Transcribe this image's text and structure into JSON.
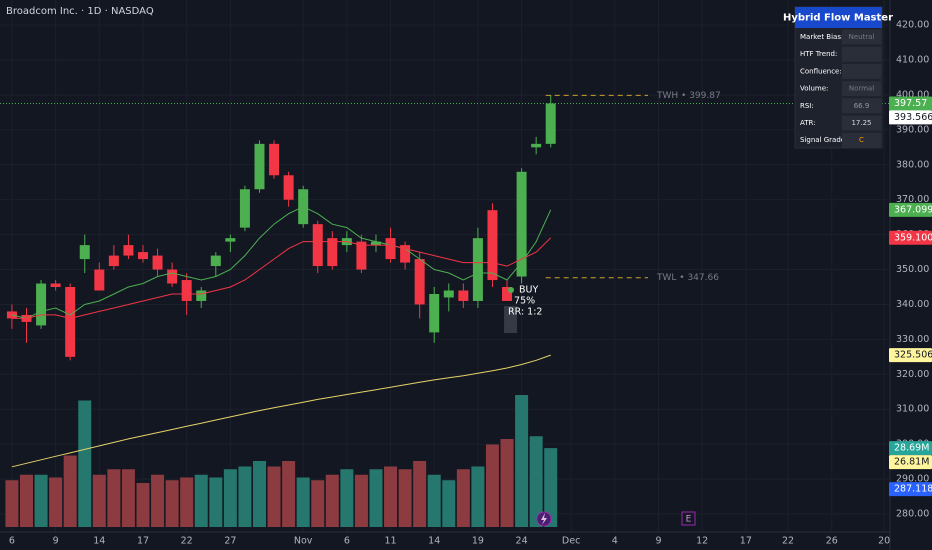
{
  "chart_data": {
    "type": "candlestick",
    "title": "Broadcom Inc. · 1D · NASDAQ",
    "x": [
      0,
      1,
      2,
      3,
      4,
      5,
      6,
      7,
      8,
      9,
      10,
      11,
      12,
      13,
      14,
      15,
      16,
      17,
      18,
      19,
      20,
      21,
      22,
      23,
      24,
      25,
      26,
      27,
      28,
      29,
      30,
      31,
      32,
      33,
      34,
      35,
      36,
      37
    ],
    "open": [
      338,
      337,
      334,
      346,
      345,
      353,
      350,
      354,
      357,
      355,
      354,
      350,
      347,
      341,
      351,
      358,
      362,
      373,
      386,
      377,
      363,
      363,
      359,
      357,
      358,
      357,
      359,
      357,
      353,
      332,
      342,
      344,
      341,
      367,
      345,
      348,
      385,
      386
    ],
    "high": [
      340,
      339,
      347,
      347,
      346,
      360,
      352,
      357,
      360,
      357,
      356,
      352,
      349,
      345,
      355,
      360,
      374,
      387,
      387,
      378,
      374,
      364,
      361,
      361,
      360,
      360,
      362,
      358,
      355,
      345,
      346,
      346,
      362,
      369,
      347,
      379,
      388,
      400
    ],
    "low": [
      333,
      329,
      333,
      344,
      324,
      349,
      344,
      350,
      353,
      352,
      348,
      345,
      337,
      339,
      348,
      355,
      361,
      372,
      376,
      368,
      362,
      349,
      350,
      355,
      349,
      355,
      352,
      350,
      336,
      329,
      338,
      339,
      339,
      345,
      341,
      346,
      383,
      385
    ],
    "close": [
      336,
      335,
      346,
      345,
      325,
      357,
      344,
      351,
      354,
      353,
      350,
      346,
      341,
      344,
      354,
      359,
      373,
      386,
      377,
      370,
      373,
      351,
      351,
      359,
      350,
      358,
      353,
      352,
      340,
      343,
      344,
      341,
      359,
      347,
      341,
      378,
      386,
      397.57
    ],
    "volume": [
      17,
      19,
      19,
      18,
      26,
      46,
      19,
      21,
      21,
      16,
      19,
      17,
      18,
      19,
      18,
      21,
      22,
      24,
      22,
      24,
      18,
      17,
      19,
      21,
      19,
      21,
      22,
      21,
      24,
      19,
      17,
      21,
      22,
      30,
      32,
      48,
      33,
      28.69
    ],
    "up_color": "#4caf50",
    "down_color": "#f23645",
    "volume_up_color": "#26786f",
    "volume_down_color": "#8c3b41",
    "lines": [
      {
        "color": "#4caf50",
        "values": [
          337,
          336,
          338,
          339,
          337,
          340,
          341,
          343,
          345,
          346,
          348,
          349,
          348,
          347,
          348,
          350,
          354,
          359,
          363,
          366,
          368,
          366,
          363,
          362,
          359,
          358,
          357,
          356,
          353,
          350,
          349,
          347,
          349,
          349,
          347,
          352,
          358,
          367.0998
        ]
      },
      {
        "color": "#f23645",
        "values": [
          336,
          336,
          337,
          337,
          336,
          337,
          338,
          339,
          340,
          341,
          342,
          343,
          343,
          343,
          344,
          345,
          347,
          350,
          353,
          356,
          358,
          358,
          358,
          358,
          357,
          357,
          357,
          356,
          355,
          354,
          353,
          352,
          352,
          352,
          351,
          353,
          355,
          359.1003
        ]
      },
      {
        "color": "#e6d36a",
        "values": [
          293.5,
          294.5,
          295.5,
          296.5,
          297.5,
          298.5,
          299.5,
          300.5,
          301.5,
          302.4,
          303.3,
          304.2,
          305.1,
          306,
          306.9,
          307.8,
          308.7,
          309.6,
          310.4,
          311.2,
          312,
          312.8,
          313.5,
          314.2,
          314.9,
          315.6,
          316.3,
          317,
          317.7,
          318.4,
          319,
          319.6,
          320.3,
          321,
          321.8,
          322.8,
          324,
          325.5061
        ]
      }
    ],
    "xlim": [
      -0.82,
      60.3
    ],
    "ylim": [
      273.4,
      427.2
    ],
    "grid": true,
    "yticks": [
      {
        "value": 280,
        "label": "280.00"
      },
      {
        "value": 290,
        "label": "290.00"
      },
      {
        "value": 300,
        "label": "300.00"
      },
      {
        "value": 310,
        "label": "310.00"
      },
      {
        "value": 320,
        "label": "320.00"
      },
      {
        "value": 330,
        "label": "330.00"
      },
      {
        "value": 340,
        "label": "340.00"
      },
      {
        "value": 350,
        "label": "350.00"
      },
      {
        "value": 360,
        "label": "360.00"
      },
      {
        "value": 370,
        "label": "370.00"
      },
      {
        "value": 380,
        "label": "380.00"
      },
      {
        "value": 390,
        "label": "390.00"
      },
      {
        "value": 400,
        "label": "400.00"
      },
      {
        "value": 410,
        "label": "410.00"
      },
      {
        "value": 420,
        "label": "420.00"
      }
    ],
    "xticks": [
      {
        "value": 0,
        "label": "6"
      },
      {
        "value": 3,
        "label": "9"
      },
      {
        "value": 6,
        "label": "14"
      },
      {
        "value": 9,
        "label": "17"
      },
      {
        "value": 12,
        "label": "22"
      },
      {
        "value": 15,
        "label": "27"
      },
      {
        "value": 20,
        "label": "Nov"
      },
      {
        "value": 23,
        "label": "6"
      },
      {
        "value": 26,
        "label": "11"
      },
      {
        "value": 29,
        "label": "14"
      },
      {
        "value": 32,
        "label": "19"
      },
      {
        "value": 35,
        "label": "24"
      },
      {
        "value": 38.4,
        "label": "Dec"
      },
      {
        "value": 41.4,
        "label": "4"
      },
      {
        "value": 44.4,
        "label": "9"
      },
      {
        "value": 47.4,
        "label": "12"
      },
      {
        "value": 50.4,
        "label": "17"
      },
      {
        "value": 53.3,
        "label": "22"
      },
      {
        "value": 56.3,
        "label": "26"
      },
      {
        "value": 59.9,
        "label": "20"
      }
    ],
    "levels": [
      {
        "text": "TWH • 399.87",
        "value": 399.87
      },
      {
        "text": "TWL • 347.66",
        "value": 347.66
      }
    ],
    "price_badges": [
      {
        "value": 397.57,
        "color": "#4caf50",
        "text_color": "#ffffff"
      },
      {
        "value": 393.5667,
        "color": "#ffffff",
        "text_color": "#131722"
      },
      {
        "value": 367.0998,
        "color": "#4caf50",
        "text_color": "#ffffff"
      },
      {
        "value": 359.1003,
        "color": "#f23645",
        "text_color": "#ffffff"
      },
      {
        "value": 325.5061,
        "color": "#fff59d",
        "text_color": "#131722"
      },
      {
        "value": 287.1185,
        "color": "#2962ff",
        "text_color": "#ffffff"
      }
    ],
    "volume_badges": [
      {
        "value": 28.69,
        "label": "28.69M",
        "color": "#26a69a",
        "text_color": "#ffffff"
      },
      {
        "value": 26.81,
        "label": "26.81M",
        "color": "#fff59d",
        "text_color": "#131722"
      }
    ],
    "signal": {
      "text": "BUY",
      "confidence": "75%",
      "rr": "RR: 1:2"
    },
    "event_marker": "E",
    "panel": {
      "title": "Hybrid Flow Master",
      "rows": [
        {
          "label": "Market Bias:",
          "value": "Neutral",
          "value_color": "#787b86"
        },
        {
          "label": "HTF Trend:"
        },
        {
          "label": "Confluence:"
        },
        {
          "label": "Volume:",
          "value": "Normal",
          "value_color": "#787b86"
        },
        {
          "label": "RSI:",
          "value": "66.9",
          "value_color": "#9598a1"
        },
        {
          "label": "ATR:",
          "value": "17.25",
          "value_color": "#d1d4dc"
        },
        {
          "label": "Signal Grade:",
          "value": "C",
          "value_color": "#ff9800"
        }
      ]
    }
  }
}
